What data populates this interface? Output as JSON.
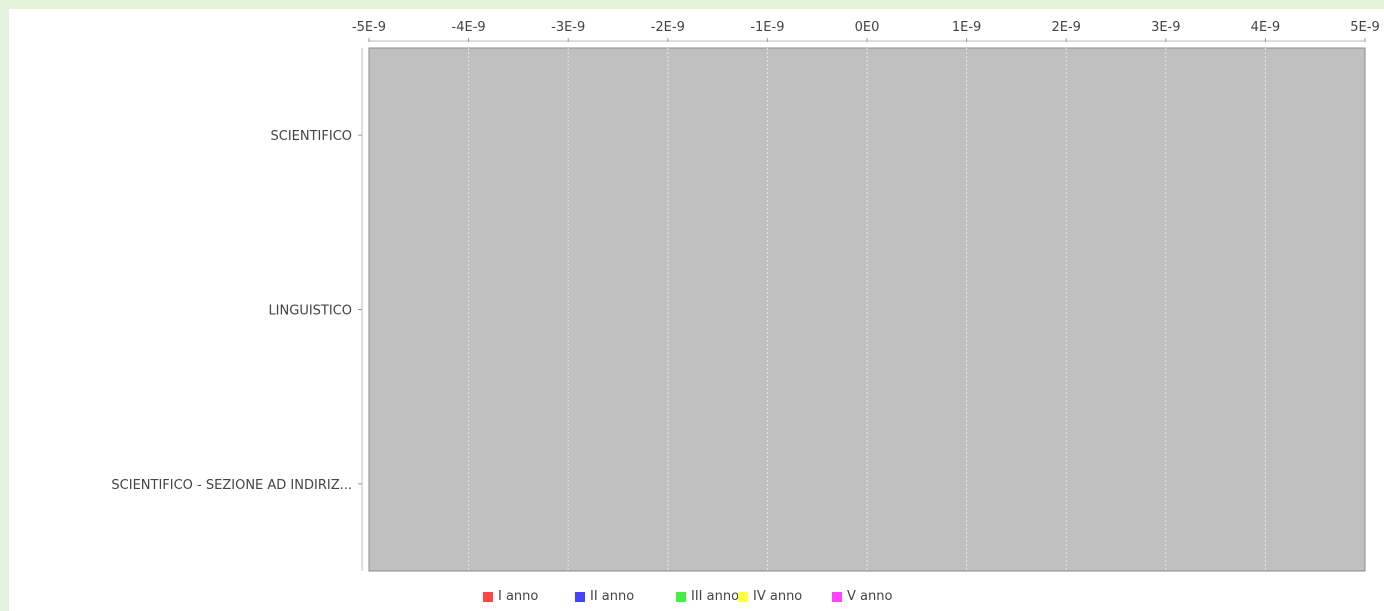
{
  "chart_data": {
    "type": "bar",
    "orientation": "horizontal",
    "categories": [
      "SCIENTIFICO",
      "LINGUISTICO",
      "SCIENTIFICO - SEZIONE AD INDIRIZ..."
    ],
    "x_ticks": [
      "-5E-9",
      "-4E-9",
      "-3E-9",
      "-2E-9",
      "-1E-9",
      "0E0",
      "1E-9",
      "2E-9",
      "3E-9",
      "4E-9",
      "5E-9"
    ],
    "xlim": [
      -5e-09,
      5e-09
    ],
    "x_axis_position": "top",
    "grid": true,
    "plot_background": "#c0c0c0",
    "legend_position": "bottom",
    "series": [
      {
        "name": "I anno",
        "color": "#ff4444",
        "values": [
          0,
          0,
          0
        ]
      },
      {
        "name": "II anno",
        "color": "#4444ff",
        "values": [
          0,
          0,
          0
        ]
      },
      {
        "name": "III anno",
        "color": "#44ee44",
        "values": [
          0,
          0,
          0
        ]
      },
      {
        "name": "IV anno",
        "color": "#ffff44",
        "values": [
          0,
          0,
          0
        ]
      },
      {
        "name": "V anno",
        "color": "#ff44ff",
        "values": [
          0,
          0,
          0
        ]
      }
    ]
  }
}
